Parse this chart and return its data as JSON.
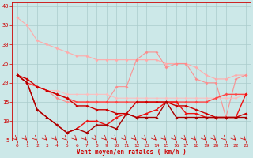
{
  "bg_color": "#cce8e8",
  "grid_color": "#aacccc",
  "xlabel": "Vent moyen/en rafales ( km/h )",
  "xlabel_color": "#cc0000",
  "tick_color": "#cc0000",
  "x_values": [
    0,
    1,
    2,
    3,
    4,
    5,
    6,
    7,
    8,
    9,
    10,
    11,
    12,
    13,
    14,
    15,
    16,
    17,
    18,
    19,
    20,
    21,
    22,
    23
  ],
  "series": [
    [
      37,
      35,
      31,
      30,
      29,
      28,
      27,
      27,
      26,
      26,
      26,
      26,
      26,
      26,
      26,
      25,
      25,
      25,
      24,
      22,
      21,
      21,
      22,
      22
    ],
    [
      22,
      20,
      19,
      18,
      16,
      15,
      15,
      15,
      15,
      15,
      19,
      19,
      26,
      28,
      28,
      24,
      25,
      25,
      21,
      20,
      20,
      11,
      21,
      22
    ],
    [
      22,
      21,
      19,
      18,
      18,
      17,
      17,
      17,
      17,
      17,
      16,
      16,
      16,
      16,
      16,
      16,
      16,
      16,
      16,
      16,
      16,
      16,
      16,
      17
    ],
    [
      22,
      20,
      19,
      18,
      17,
      16,
      15,
      15,
      15,
      15,
      15,
      15,
      15,
      15,
      15,
      15,
      15,
      15,
      15,
      15,
      16,
      17,
      17,
      17
    ],
    [
      22,
      21,
      19,
      18,
      17,
      16,
      14,
      14,
      13,
      13,
      12,
      12,
      15,
      15,
      15,
      15,
      14,
      14,
      13,
      12,
      11,
      11,
      11,
      12
    ],
    [
      22,
      20,
      13,
      11,
      9,
      7,
      8,
      10,
      10,
      9,
      11,
      12,
      11,
      12,
      13,
      15,
      15,
      12,
      12,
      11,
      11,
      11,
      11,
      17
    ],
    [
      22,
      20,
      13,
      11,
      9,
      7,
      8,
      7,
      9,
      9,
      8,
      12,
      11,
      11,
      11,
      15,
      11,
      11,
      11,
      11,
      11,
      11,
      11,
      11
    ]
  ],
  "series_styles": [
    {
      "color": "#ffaaaa",
      "lw": 0.8,
      "marker": "D",
      "ms": 2.0,
      "alpha": 1.0
    },
    {
      "color": "#ff8888",
      "lw": 0.8,
      "marker": "D",
      "ms": 2.0,
      "alpha": 0.9
    },
    {
      "color": "#ffbbbb",
      "lw": 0.8,
      "marker": "D",
      "ms": 2.0,
      "alpha": 0.9
    },
    {
      "color": "#ff4444",
      "lw": 1.0,
      "marker": "D",
      "ms": 2.0,
      "alpha": 1.0
    },
    {
      "color": "#cc0000",
      "lw": 1.0,
      "marker": "D",
      "ms": 2.0,
      "alpha": 1.0
    },
    {
      "color": "#ee1111",
      "lw": 1.0,
      "marker": "D",
      "ms": 2.0,
      "alpha": 1.0
    },
    {
      "color": "#aa0000",
      "lw": 1.0,
      "marker": "D",
      "ms": 2.0,
      "alpha": 1.0
    }
  ],
  "ylim": [
    5,
    41
  ],
  "yticks": [
    5,
    10,
    15,
    20,
    25,
    30,
    35,
    40
  ],
  "xlim": [
    -0.5,
    23.5
  ],
  "xticks": [
    0,
    1,
    2,
    3,
    4,
    5,
    6,
    7,
    8,
    9,
    10,
    11,
    12,
    13,
    14,
    15,
    16,
    17,
    18,
    19,
    20,
    21,
    22,
    23
  ]
}
